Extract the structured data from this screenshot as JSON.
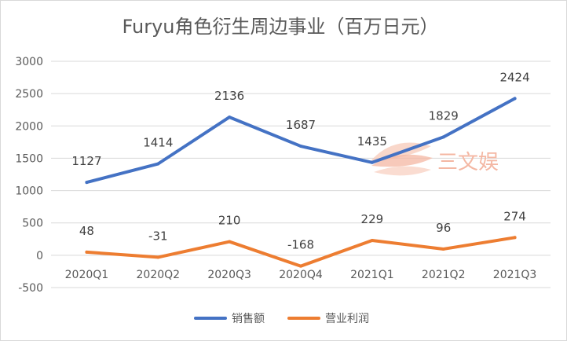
{
  "chart_data": {
    "type": "line",
    "title": "Furyu角色衍生周边事业（百万日元）",
    "categories": [
      "2020Q1",
      "2020Q2",
      "2020Q3",
      "2020Q4",
      "2021Q1",
      "2021Q2",
      "2021Q3"
    ],
    "series": [
      {
        "name": "销售额",
        "values": [
          1127,
          1414,
          2136,
          1687,
          1435,
          1829,
          2424
        ],
        "color": "#4472c4"
      },
      {
        "name": "营业利润",
        "values": [
          48,
          -31,
          210,
          -168,
          229,
          96,
          274
        ],
        "color": "#ed7d31"
      }
    ],
    "ylim": [
      -500,
      3000
    ],
    "y_ticks": [
      -500,
      0,
      500,
      1000,
      1500,
      2000,
      2500,
      3000
    ],
    "grid": true,
    "legend_position": "bottom",
    "data_labels": true
  },
  "watermark": {
    "text": "三文娱",
    "colors": [
      "#f4b7a3",
      "#f7c9b8"
    ]
  }
}
